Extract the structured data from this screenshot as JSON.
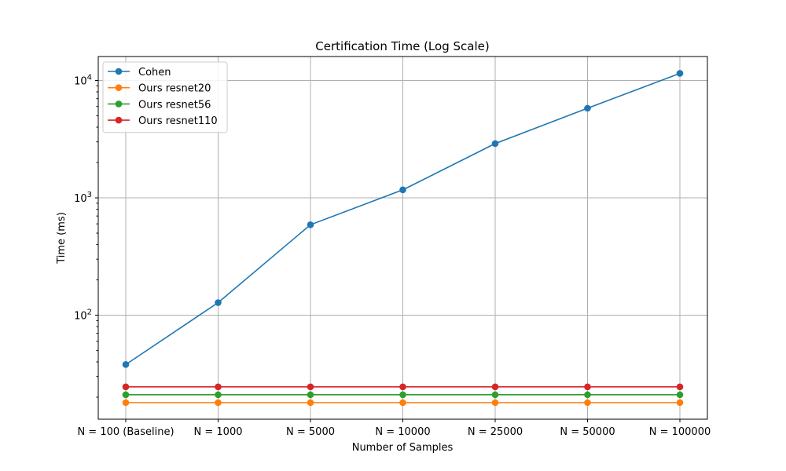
{
  "chart_data": {
    "type": "line",
    "title": "Certification Time (Log Scale)",
    "xlabel": "Number of Samples",
    "ylabel": "Time (ms)",
    "yscale": "log",
    "ylim": [
      13,
      16000
    ],
    "grid": true,
    "legend_position": "top-left",
    "categories": [
      "N = 100 (Baseline)",
      "N = 1000",
      "N = 5000",
      "N = 10000",
      "N = 25000",
      "N = 50000",
      "N = 100000"
    ],
    "y_ticks": [
      {
        "value": 100,
        "base": "10",
        "exp": "2"
      },
      {
        "value": 1000,
        "base": "10",
        "exp": "3"
      },
      {
        "value": 10000,
        "base": "10",
        "exp": "4"
      }
    ],
    "series": [
      {
        "name": "Cohen",
        "color": "#1f77b4",
        "values": [
          38,
          128,
          590,
          1170,
          2900,
          5800,
          11500
        ]
      },
      {
        "name": "Ours resnet20",
        "color": "#ff7f0e",
        "values": [
          18,
          18,
          18,
          18,
          18,
          18,
          18
        ]
      },
      {
        "name": "Ours resnet56",
        "color": "#2ca02c",
        "values": [
          21,
          21,
          21,
          21,
          21,
          21,
          21
        ]
      },
      {
        "name": "Ours resnet110",
        "color": "#d62728",
        "values": [
          24.5,
          24.5,
          24.5,
          24.5,
          24.5,
          24.5,
          24.5
        ]
      }
    ]
  }
}
